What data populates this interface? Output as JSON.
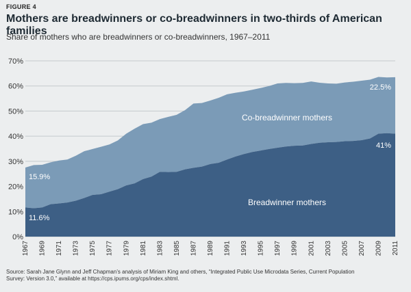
{
  "figure_label": "FIGURE 4",
  "title": "Mothers are breadwinners or co-breadwinners in two-thirds of American families",
  "subtitle": "Share of mothers who are breadwinners or co-breadwinners, 1967–2011",
  "source": {
    "line1": "Source: Sarah Jane Glynn and Jeff Chapman’s analysis of Miriam King and others, “Integrated Public Use Microdata Series, Current Population",
    "line2": "Survey: Version 3.0,” available at https://cps.ipums.org/cps/index.shtml."
  },
  "colors": {
    "breadwinner": "#3d5f85",
    "co_breadwinner": "#7b9bb7",
    "gridline": "#c4c9cd",
    "text": "#333333"
  },
  "chart_data": {
    "type": "area",
    "stacked": true,
    "ylim": [
      0,
      70
    ],
    "y_ticks": [
      0,
      10,
      20,
      30,
      40,
      50,
      60,
      70
    ],
    "y_tick_labels": [
      "0%",
      "10%",
      "20%",
      "30%",
      "40%",
      "50%",
      "60%",
      "70%"
    ],
    "x_tick_labels": [
      "1967",
      "1969",
      "1971",
      "1973",
      "1975",
      "1977",
      "1979",
      "1981",
      "1983",
      "1985",
      "1987",
      "1989",
      "1991",
      "1993",
      "1995",
      "1997",
      "1999",
      "2001",
      "2003",
      "2005",
      "2007",
      "2009",
      "2011"
    ],
    "x": [
      1967,
      1968,
      1969,
      1970,
      1971,
      1972,
      1973,
      1974,
      1975,
      1976,
      1977,
      1978,
      1979,
      1980,
      1981,
      1982,
      1983,
      1984,
      1985,
      1986,
      1987,
      1988,
      1989,
      1990,
      1991,
      1992,
      1993,
      1994,
      1995,
      1996,
      1997,
      1998,
      1999,
      2000,
      2001,
      2002,
      2003,
      2004,
      2005,
      2006,
      2007,
      2008,
      2009,
      2010,
      2011
    ],
    "series": [
      {
        "name": "Breadwinner mothers",
        "values": [
          11.6,
          11.3,
          11.6,
          12.9,
          13.2,
          13.6,
          14.3,
          15.4,
          16.6,
          16.9,
          17.9,
          18.9,
          20.4,
          21.2,
          22.9,
          23.9,
          25.8,
          25.7,
          25.8,
          26.8,
          27.4,
          27.9,
          28.9,
          29.4,
          30.7,
          31.9,
          32.9,
          33.7,
          34.3,
          34.9,
          35.4,
          35.9,
          36.2,
          36.3,
          36.9,
          37.4,
          37.6,
          37.7,
          38.0,
          38.1,
          38.4,
          39.1,
          41.0,
          41.2,
          41.0
        ]
      },
      {
        "name": "Co-breadwinner mothers",
        "values": [
          15.9,
          17.2,
          17.0,
          16.7,
          17.1,
          17.1,
          17.9,
          18.6,
          18.3,
          18.9,
          18.8,
          19.4,
          20.6,
          21.8,
          21.9,
          21.5,
          21.0,
          22.0,
          22.7,
          23.6,
          25.6,
          25.3,
          25.3,
          25.9,
          26.0,
          25.4,
          24.9,
          24.8,
          24.9,
          25.1,
          25.6,
          25.3,
          24.9,
          24.9,
          24.9,
          23.9,
          23.4,
          23.2,
          23.4,
          23.6,
          23.7,
          23.4,
          22.6,
          22.2,
          22.5
        ]
      }
    ],
    "annotations": {
      "co_label": "Co-breadwinner mothers",
      "bread_label": "Breadwinner mothers",
      "co_start": "15.9%",
      "bread_start": "11.6%",
      "co_end": "22.5%",
      "bread_end": "41%"
    }
  }
}
